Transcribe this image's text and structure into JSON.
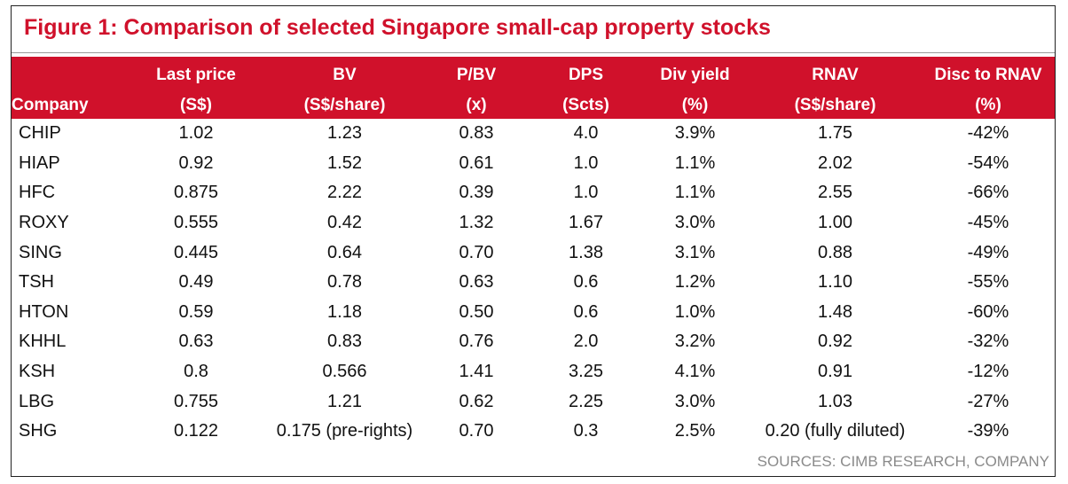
{
  "title": "Figure 1: Comparison of selected Singapore small-cap property stocks",
  "headers": {
    "row1": [
      "",
      "Last price",
      "BV",
      "P/BV",
      "DPS",
      "Div yield",
      "RNAV",
      "Disc to RNAV"
    ],
    "row2": [
      "Company",
      "(S$)",
      "(S$/share)",
      "(x)",
      "(Scts)",
      "(%)",
      "(S$/share)",
      "(%)"
    ]
  },
  "rows": [
    [
      "CHIP",
      "1.02",
      "1.23",
      "0.83",
      "4.0",
      "3.9%",
      "1.75",
      "-42%"
    ],
    [
      "HIAP",
      "0.92",
      "1.52",
      "0.61",
      "1.0",
      "1.1%",
      "2.02",
      "-54%"
    ],
    [
      "HFC",
      "0.875",
      "2.22",
      "0.39",
      "1.0",
      "1.1%",
      "2.55",
      "-66%"
    ],
    [
      "ROXY",
      "0.555",
      "0.42",
      "1.32",
      "1.67",
      "3.0%",
      "1.00",
      "-45%"
    ],
    [
      "SING",
      "0.445",
      "0.64",
      "0.70",
      "1.38",
      "3.1%",
      "0.88",
      "-49%"
    ],
    [
      "TSH",
      "0.49",
      "0.78",
      "0.63",
      "0.6",
      "1.2%",
      "1.10",
      "-55%"
    ],
    [
      "HTON",
      "0.59",
      "1.18",
      "0.50",
      "0.6",
      "1.0%",
      "1.48",
      "-60%"
    ],
    [
      "KHHL",
      "0.63",
      "0.83",
      "0.76",
      "2.0",
      "3.2%",
      "0.92",
      "-32%"
    ],
    [
      "KSH",
      "0.8",
      "0.566",
      "1.41",
      "3.25",
      "4.1%",
      "0.91",
      "-12%"
    ],
    [
      "LBG",
      "0.755",
      "1.21",
      "0.62",
      "2.25",
      "3.0%",
      "1.03",
      "-27%"
    ],
    [
      "SHG",
      "0.122",
      "0.175 (pre-rights)",
      "0.70",
      "0.3",
      "2.5%",
      "0.20 (fully diluted)",
      "-39%"
    ]
  ],
  "source": "SOURCES: CIMB RESEARCH, COMPANY",
  "colors": {
    "accent": "#d0112b",
    "header_text": "#ffffff",
    "source_text": "#8a8a8a"
  }
}
